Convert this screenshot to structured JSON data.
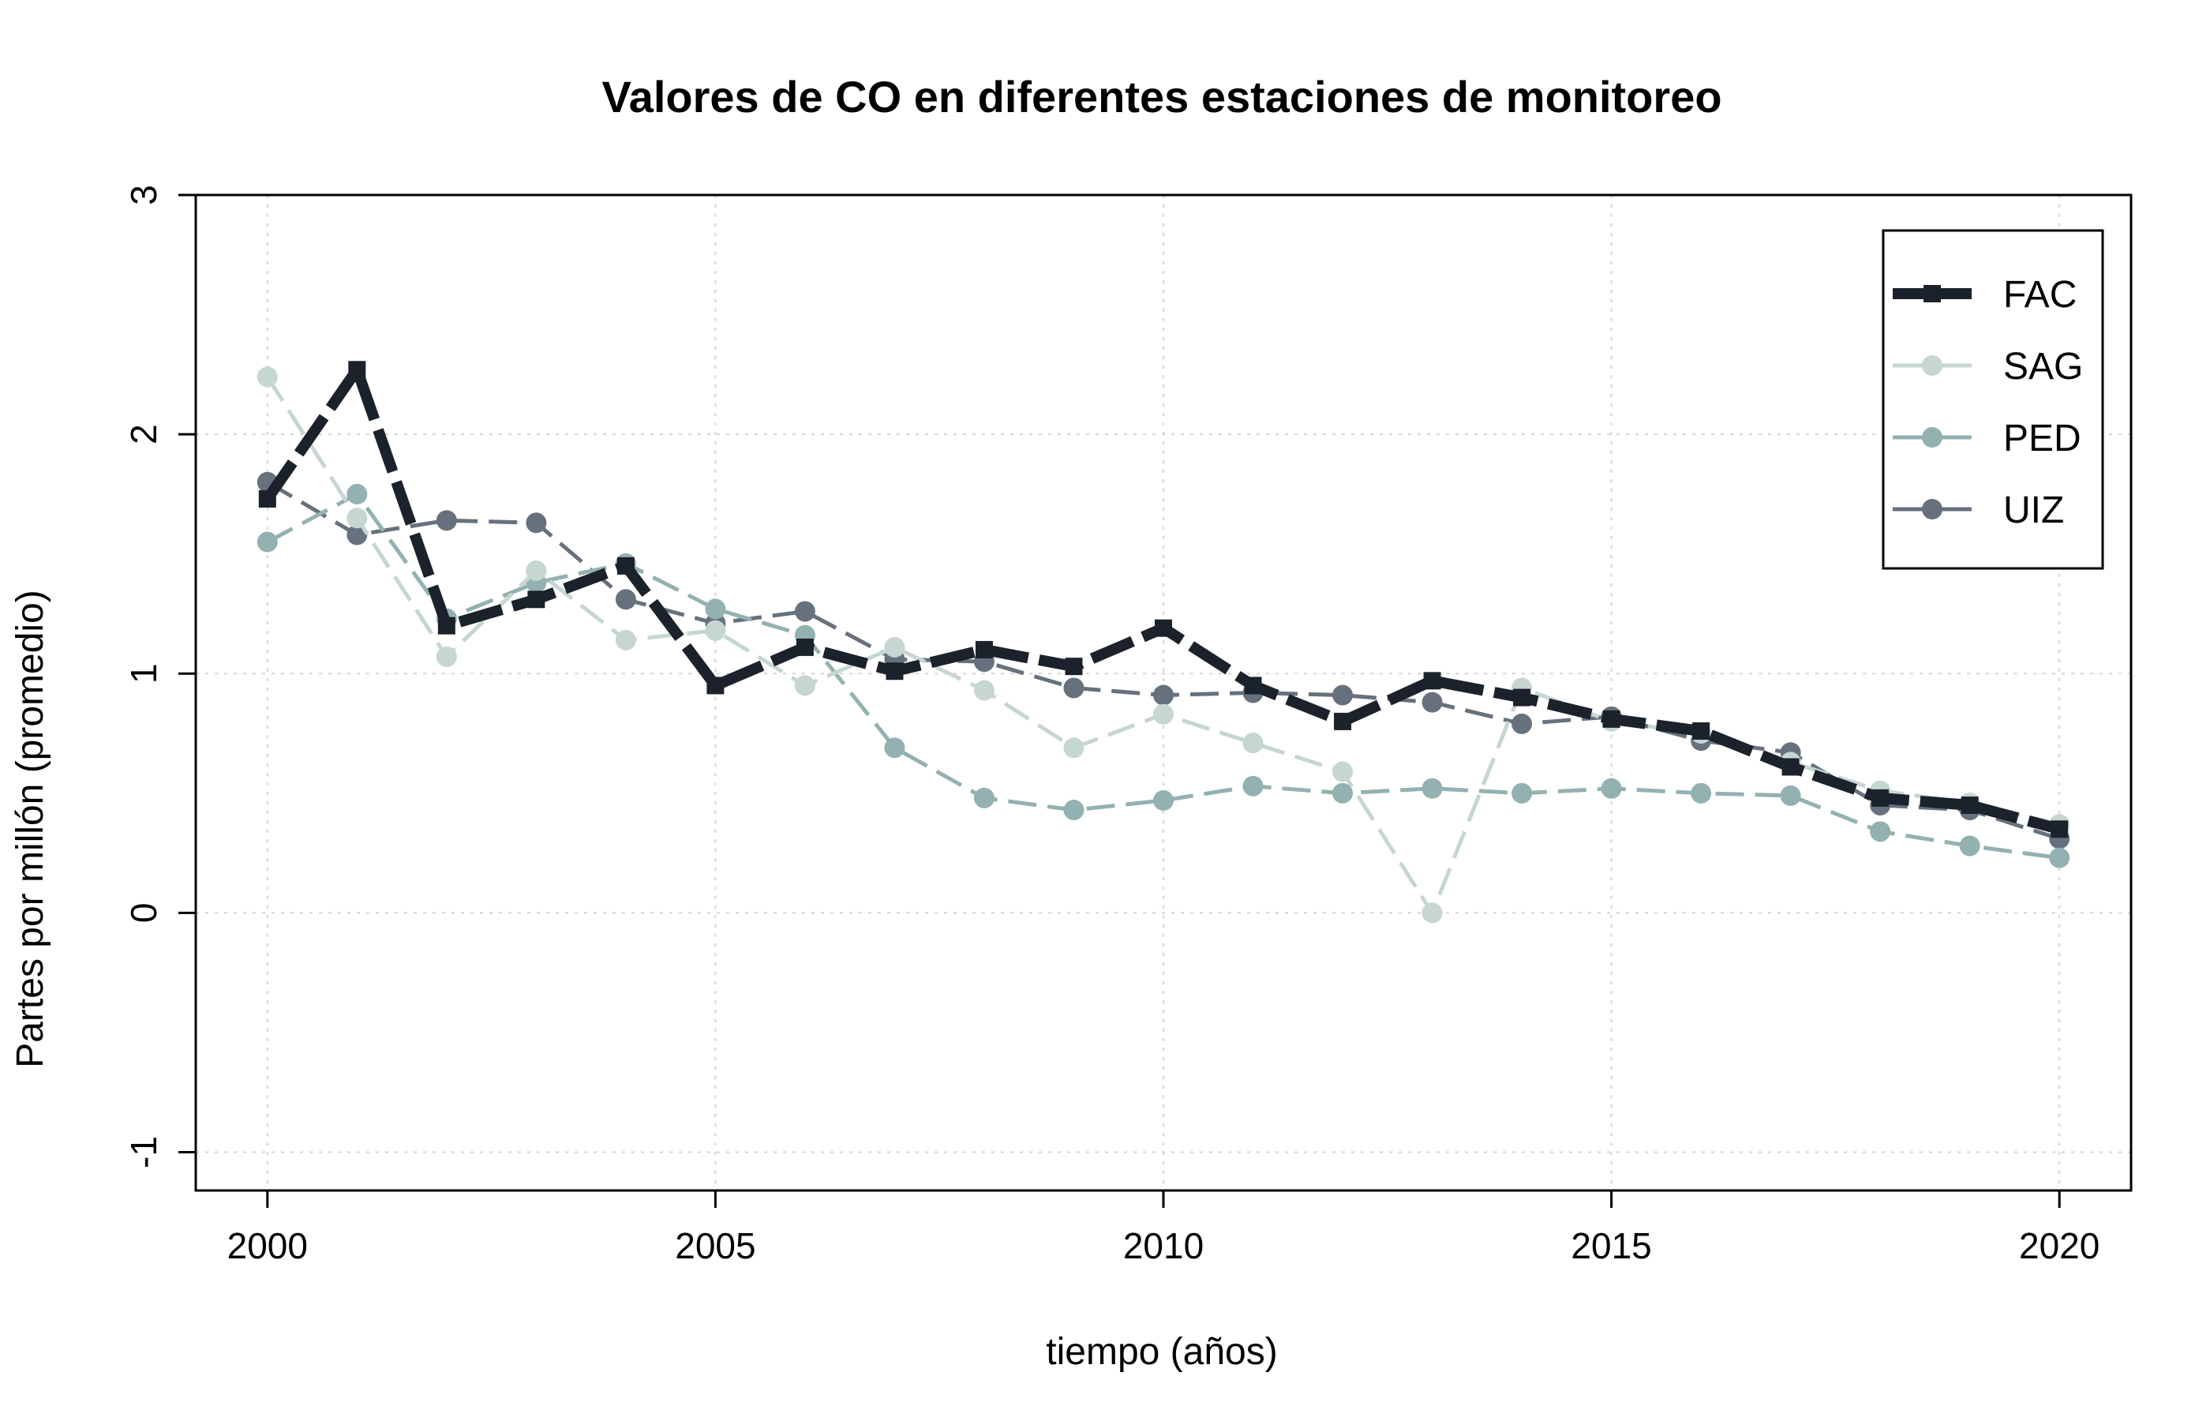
{
  "chart_data": {
    "type": "line",
    "title": "Valores de CO en diferentes estaciones de monitoreo",
    "xlabel": "tiempo (años)",
    "ylabel": "Partes por millón (promedio)",
    "x": [
      2000,
      2001,
      2002,
      2003,
      2004,
      2005,
      2006,
      2007,
      2008,
      2009,
      2010,
      2011,
      2012,
      2013,
      2014,
      2015,
      2016,
      2017,
      2018,
      2019,
      2020
    ],
    "xlim": [
      1999.2,
      2020.8
    ],
    "ylim": [
      -1.16,
      3.0
    ],
    "xticks": [
      "2000",
      "2005",
      "2010",
      "2015",
      "2020"
    ],
    "yticks": [
      "-1",
      "0",
      "1",
      "2",
      "3"
    ],
    "grid": true,
    "legend_position": "top-right",
    "series": [
      {
        "name": "FAC",
        "color": "#1b222b",
        "marker": "square",
        "line": "dashed-thick",
        "values": [
          1.73,
          2.27,
          1.2,
          1.31,
          1.45,
          0.95,
          1.11,
          1.01,
          1.1,
          1.03,
          1.19,
          0.95,
          0.8,
          0.97,
          0.9,
          0.81,
          0.76,
          0.61,
          0.48,
          0.45,
          0.35
        ]
      },
      {
        "name": "SAG",
        "color": "#c6d6d2",
        "marker": "circle",
        "line": "dashed",
        "values": [
          2.24,
          1.65,
          1.07,
          1.43,
          1.14,
          1.18,
          0.95,
          1.11,
          0.93,
          0.69,
          0.83,
          0.71,
          0.59,
          0.0,
          0.94,
          0.8,
          0.75,
          0.63,
          0.51,
          0.46,
          0.37
        ]
      },
      {
        "name": "PED",
        "color": "#93b1b0",
        "marker": "circle",
        "line": "dashed",
        "values": [
          1.55,
          1.75,
          1.23,
          1.38,
          1.46,
          1.27,
          1.16,
          0.69,
          0.48,
          0.43,
          0.47,
          0.53,
          0.5,
          0.52,
          0.5,
          0.52,
          0.5,
          0.49,
          0.34,
          0.28,
          0.23
        ]
      },
      {
        "name": "UIZ",
        "color": "#67717e",
        "marker": "circle",
        "line": "dashed",
        "values": [
          1.8,
          1.58,
          1.64,
          1.63,
          1.31,
          1.21,
          1.26,
          1.06,
          1.05,
          0.94,
          0.91,
          0.92,
          0.91,
          0.88,
          0.79,
          0.82,
          0.72,
          0.67,
          0.45,
          0.43,
          0.31
        ]
      }
    ]
  }
}
